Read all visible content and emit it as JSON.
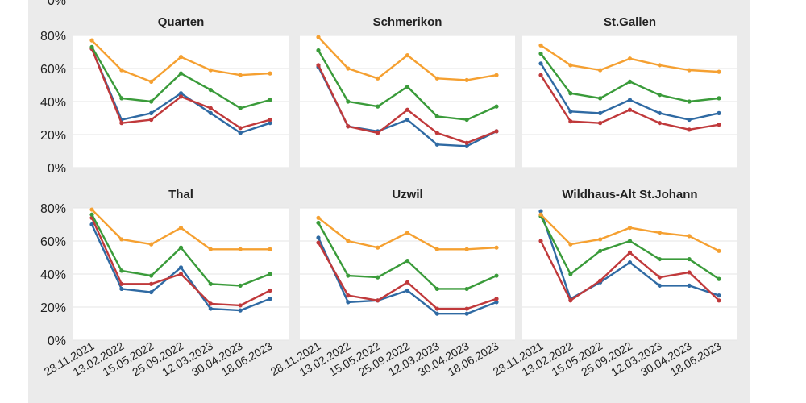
{
  "chart_data": {
    "type": "line",
    "x": [
      "28.11.2021",
      "13.02.2022",
      "15.05.2022",
      "25.09.2022",
      "12.03.2023",
      "30.04.2023",
      "18.06.2023"
    ],
    "y_ticks": [
      "0%",
      "20%",
      "40%",
      "60%",
      "80%"
    ],
    "top_clipped_tick": "0%",
    "ylim": [
      0,
      80
    ],
    "grid": true,
    "colors": {
      "orange": "#f5a031",
      "green": "#3a9b3a",
      "red": "#c0393b",
      "blue": "#2f6aa3"
    },
    "panels": [
      {
        "title": "Quarten",
        "series": [
          {
            "color": "orange",
            "values": [
              77,
              59,
              52,
              67,
              59,
              56,
              57
            ]
          },
          {
            "color": "green",
            "values": [
              73,
              42,
              40,
              57,
              47,
              36,
              41
            ]
          },
          {
            "color": "red",
            "values": [
              72,
              27,
              29,
              43,
              36,
              24,
              29
            ]
          },
          {
            "color": "blue",
            "values": [
              72,
              29,
              33,
              45,
              33,
              21,
              27
            ]
          }
        ]
      },
      {
        "title": "Schmerikon",
        "series": [
          {
            "color": "orange",
            "values": [
              79,
              60,
              54,
              68,
              54,
              53,
              56
            ]
          },
          {
            "color": "green",
            "values": [
              71,
              40,
              37,
              49,
              31,
              29,
              37
            ]
          },
          {
            "color": "red",
            "values": [
              62,
              25,
              21,
              35,
              21,
              15,
              22
            ]
          },
          {
            "color": "blue",
            "values": [
              61,
              25,
              22,
              29,
              14,
              13,
              22
            ]
          }
        ]
      },
      {
        "title": "St.Gallen",
        "series": [
          {
            "color": "orange",
            "values": [
              74,
              62,
              59,
              66,
              62,
              59,
              58
            ]
          },
          {
            "color": "green",
            "values": [
              69,
              45,
              42,
              52,
              44,
              40,
              42
            ]
          },
          {
            "color": "red",
            "values": [
              56,
              28,
              27,
              35,
              27,
              23,
              26
            ]
          },
          {
            "color": "blue",
            "values": [
              63,
              34,
              33,
              41,
              33,
              29,
              33
            ]
          }
        ]
      },
      {
        "title": "Thal",
        "series": [
          {
            "color": "orange",
            "values": [
              79,
              61,
              58,
              68,
              55,
              55,
              55
            ]
          },
          {
            "color": "green",
            "values": [
              76,
              42,
              39,
              56,
              34,
              33,
              40
            ]
          },
          {
            "color": "red",
            "values": [
              74,
              34,
              34,
              40,
              22,
              21,
              30
            ]
          },
          {
            "color": "blue",
            "values": [
              70,
              31,
              29,
              44,
              19,
              18,
              25
            ]
          }
        ]
      },
      {
        "title": "Uzwil",
        "series": [
          {
            "color": "orange",
            "values": [
              74,
              60,
              56,
              65,
              55,
              55,
              56
            ]
          },
          {
            "color": "green",
            "values": [
              71,
              39,
              38,
              48,
              31,
              31,
              39
            ]
          },
          {
            "color": "red",
            "values": [
              59,
              27,
              24,
              35,
              19,
              19,
              25
            ]
          },
          {
            "color": "blue",
            "values": [
              62,
              23,
              24,
              30,
              16,
              16,
              23
            ]
          }
        ]
      },
      {
        "title": "Wildhaus-Alt St.Johann",
        "series": [
          {
            "color": "orange",
            "values": [
              76,
              58,
              61,
              68,
              65,
              63,
              54
            ]
          },
          {
            "color": "green",
            "values": [
              75,
              40,
              54,
              60,
              49,
              49,
              37
            ]
          },
          {
            "color": "red",
            "values": [
              60,
              24,
              36,
              53,
              38,
              41,
              24
            ]
          },
          {
            "color": "blue",
            "values": [
              78,
              25,
              35,
              47,
              33,
              33,
              27
            ]
          }
        ]
      }
    ]
  }
}
